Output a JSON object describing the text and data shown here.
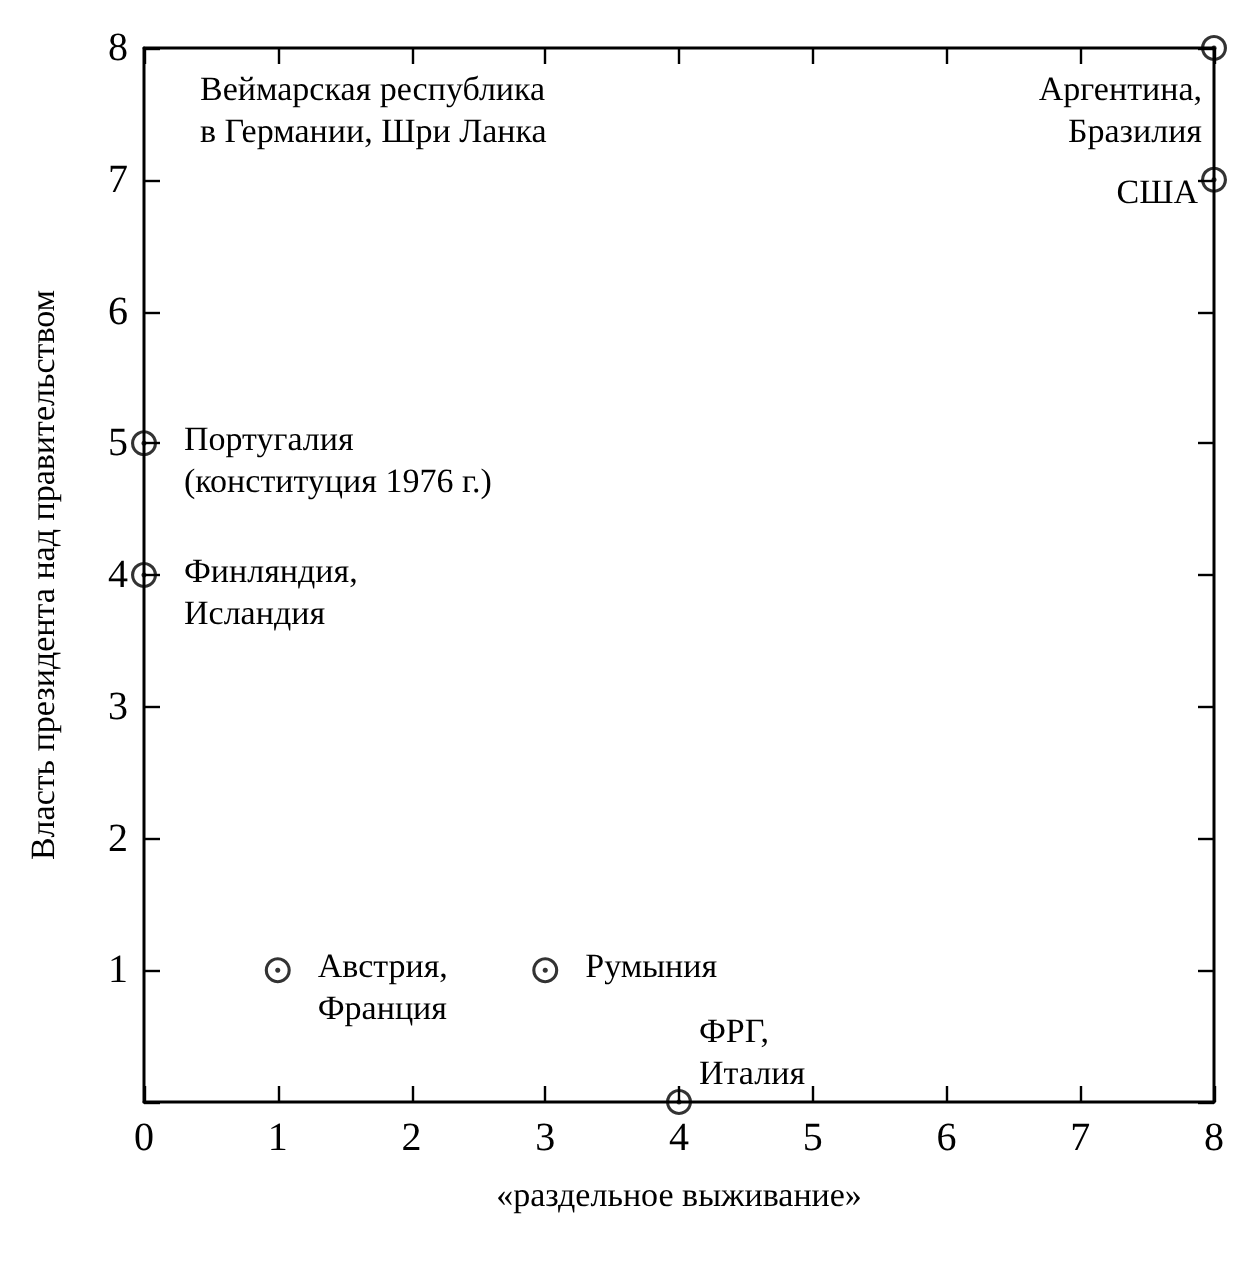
{
  "chart_data": {
    "type": "scatter",
    "xlabel": "«раздельное выживание»",
    "ylabel": "Власть президента над правительством",
    "x": [
      8,
      8,
      0,
      0,
      1,
      3,
      4
    ],
    "series": [
      {
        "color": "#000000",
        "values": [
          8,
          7,
          5,
          4,
          1,
          1,
          0
        ]
      }
    ],
    "marker": "circle",
    "xlim": [
      0,
      8
    ],
    "xticks": [
      0,
      1,
      2,
      3,
      4,
      5,
      6,
      7,
      8
    ],
    "ylim": [
      0,
      8
    ],
    "yticks": [
      {
        "value": 0,
        "label": null
      },
      1,
      2,
      3,
      4,
      5,
      6,
      7,
      8
    ],
    "annotations": [
      "Веймарская республика\nв Германии, Шри Ланка",
      {
        "text": "Аргентина,\nБразилия",
        "x": 8,
        "y": 8
      },
      {
        "text": "США",
        "x": 8,
        "y": 7
      },
      {
        "text": "Португалия\n(конституция 1976 г.)",
        "x": 0,
        "y": 5
      },
      {
        "text": "Финляндия,\nИсландия",
        "x": 0,
        "y": 4
      },
      {
        "text": "Австрия,\nФранция",
        "x": 1,
        "y": 1
      },
      {
        "text": "Румыния",
        "x": 3,
        "y": 1
      },
      {
        "text": "ФРГ,\nИталия",
        "x": 4,
        "y": 0
      }
    ]
  }
}
